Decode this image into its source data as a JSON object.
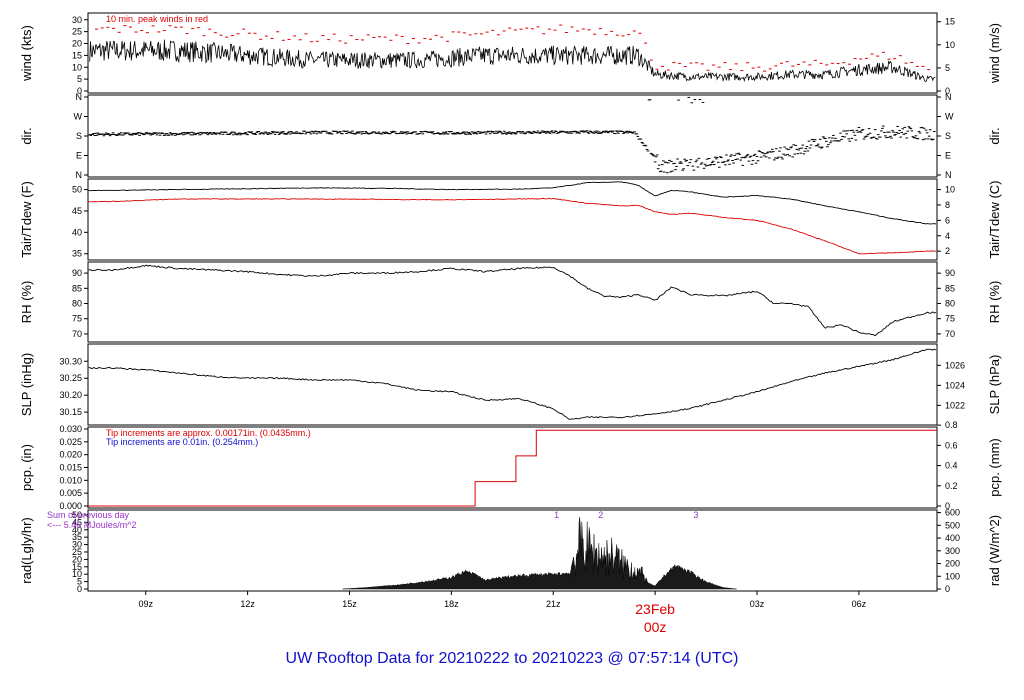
{
  "title": "UW Rooftop Data for 20210222  to  20210223 @ 07:57:14  (UTC)",
  "x_axis": {
    "ticks": [
      "09z",
      "12z",
      "15z",
      "18z",
      "21z",
      "03z",
      "06z"
    ],
    "midnight_label": "23Feb",
    "midnight_hour": "00z",
    "midnight_color": "#dd0000"
  },
  "chart_data": [
    {
      "type": "line",
      "panel": "wind",
      "ylabel_left": "wind (kts)",
      "ylabel_right": "wind (m/s)",
      "left_ticks": [
        "0",
        "5",
        "10",
        "15",
        "20",
        "25",
        "30"
      ],
      "right_ticks": [
        "0",
        "5",
        "10",
        "15"
      ],
      "ylim": [
        0,
        32
      ],
      "annotation": "10 min. peak winds in red",
      "series": [
        {
          "name": "wind",
          "color": "#000000",
          "x": [
            8,
            9,
            10,
            11,
            12,
            13,
            14,
            15,
            16,
            17,
            18,
            19,
            20,
            21,
            22,
            23,
            23.5,
            24,
            25,
            26,
            27,
            28,
            29,
            30,
            31,
            32
          ],
          "values": [
            17,
            17,
            17,
            16,
            15,
            14,
            13,
            13,
            13,
            13,
            14,
            15,
            15,
            15,
            15,
            15,
            15,
            7,
            6,
            6,
            6,
            7,
            7,
            9,
            10,
            5
          ]
        },
        {
          "name": "peak winds",
          "color": "#dd0000",
          "x": [
            8,
            9,
            10,
            11,
            12,
            13,
            14,
            15,
            16,
            17,
            18,
            19,
            20,
            21,
            22,
            23,
            23.5,
            24,
            25,
            26,
            27,
            28,
            29,
            30,
            31,
            32
          ],
          "values": [
            26,
            26,
            26,
            25,
            24,
            23,
            22,
            22,
            22,
            22,
            23,
            24,
            25,
            26,
            26,
            25,
            25,
            11,
            10,
            10,
            10,
            11,
            11,
            14,
            15,
            9
          ]
        }
      ]
    },
    {
      "type": "scatter",
      "panel": "dir",
      "ylabel_left": "dir.",
      "ylabel_right": "dir.",
      "left_ticks": [
        "N",
        "E",
        "S",
        "W",
        "N"
      ],
      "right_ticks": [
        "N",
        "E",
        "S",
        "W",
        "N"
      ],
      "ylim": [
        0,
        360
      ],
      "series": [
        {
          "name": "dir",
          "color": "#000000",
          "x": [
            8,
            10,
            12,
            14,
            16,
            18,
            20,
            22,
            23.4,
            24.2,
            24.6,
            25,
            26,
            27,
            28,
            29,
            30,
            31,
            32
          ],
          "values": [
            188,
            190,
            193,
            196,
            196,
            194,
            196,
            198,
            196,
            35,
            45,
            50,
            65,
            80,
            110,
            155,
            190,
            200,
            190
          ]
        }
      ]
    },
    {
      "type": "line",
      "panel": "temperature",
      "ylabel_left": "Tair/Tdew (F)",
      "ylabel_right": "Tair/Tdew (C)",
      "left_ticks": [
        "35",
        "40",
        "45",
        "50"
      ],
      "right_ticks": [
        "2",
        "4",
        "6",
        "8",
        "10"
      ],
      "ylim": [
        34,
        52
      ],
      "series": [
        {
          "name": "Tair",
          "color": "#000000",
          "x": [
            8,
            10,
            12,
            14,
            16,
            18,
            20,
            21,
            22,
            23,
            23.5,
            24,
            24.5,
            25,
            26,
            27,
            28,
            29,
            30,
            31,
            32
          ],
          "values": [
            49.8,
            50,
            50.2,
            50.4,
            50.3,
            50,
            50.1,
            50.4,
            51.6,
            51.8,
            51,
            48.5,
            49.8,
            49.5,
            48.2,
            48.6,
            47.8,
            46.2,
            44.8,
            43.2,
            42
          ]
        },
        {
          "name": "Tdew",
          "color": "#dd0000",
          "x": [
            8,
            10,
            12,
            14,
            16,
            18,
            20,
            21,
            22,
            23,
            23.5,
            24,
            24.5,
            25,
            26,
            27,
            28,
            29,
            30,
            31,
            32
          ],
          "values": [
            47.2,
            47.8,
            47.8,
            47.8,
            47.7,
            47.6,
            47.8,
            47.9,
            46.8,
            46.2,
            46.3,
            44.8,
            44.2,
            44.5,
            43.5,
            42.8,
            40.8,
            38,
            35,
            35.2,
            35.6
          ]
        }
      ]
    },
    {
      "type": "line",
      "panel": "rh",
      "ylabel_left": "RH (%)",
      "ylabel_right": "RH (%)",
      "left_ticks": [
        "70",
        "75",
        "80",
        "85",
        "90"
      ],
      "right_ticks": [
        "70",
        "75",
        "80",
        "85",
        "90"
      ],
      "ylim": [
        68,
        93
      ],
      "series": [
        {
          "name": "RH",
          "color": "#000000",
          "x": [
            8,
            9,
            10,
            11,
            12,
            13,
            14,
            15,
            16,
            17,
            18,
            19,
            20,
            21,
            21.5,
            22,
            22.5,
            23,
            23.5,
            24,
            24.5,
            25,
            26,
            27,
            27.5,
            28,
            28.5,
            29,
            29.5,
            30,
            30.5,
            31,
            32
          ],
          "values": [
            91,
            92.5,
            91.5,
            91,
            90.5,
            89.5,
            89,
            90,
            90,
            90.5,
            91.5,
            90.5,
            91.5,
            92,
            89,
            85,
            82.5,
            82,
            83,
            81,
            85.5,
            83,
            82.5,
            84,
            80,
            80,
            79,
            72,
            73,
            70.5,
            69.5,
            74,
            77
          ]
        }
      ]
    },
    {
      "type": "line",
      "panel": "slp",
      "ylabel_left": "SLP (inHg)",
      "ylabel_right": "SLP (hPa)",
      "left_ticks": [
        "30.15",
        "30.20",
        "30.25",
        "30.30"
      ],
      "right_ticks": [
        "1022",
        "1024",
        "1026"
      ],
      "ylim": [
        30.118,
        30.345
      ],
      "series": [
        {
          "name": "SLP",
          "color": "#000000",
          "x": [
            8,
            9,
            10,
            11,
            12,
            13,
            14,
            15,
            16,
            17,
            18,
            19,
            20,
            21,
            21.5,
            22,
            23,
            24,
            25,
            26,
            27,
            28,
            29,
            30,
            31,
            32
          ],
          "values": [
            30.28,
            30.275,
            30.265,
            30.255,
            30.25,
            30.25,
            30.245,
            30.245,
            30.235,
            30.215,
            30.21,
            30.185,
            30.19,
            30.16,
            30.128,
            30.135,
            30.135,
            30.145,
            30.16,
            30.185,
            30.21,
            30.24,
            30.265,
            30.285,
            30.305,
            30.335
          ]
        }
      ]
    },
    {
      "type": "line",
      "panel": "precip",
      "ylabel_left": "pcp. (in)",
      "ylabel_right": "pcp. (mm)",
      "left_ticks": [
        "0.000",
        "0.005",
        "0.010",
        "0.015",
        "0.020",
        "0.025",
        "0.030"
      ],
      "right_ticks": [
        "0",
        "0.2",
        "0.4",
        "0.6",
        "0.8"
      ],
      "ylim": [
        0,
        0.03
      ],
      "notes": [
        {
          "text": "Tip increments are approx. 0.00171in. (0.0435mm.)",
          "color": "#dd0000"
        },
        {
          "text": "Tip increments are 0.01in. (0.254mm.)",
          "color": "#1010cc"
        }
      ],
      "series": [
        {
          "name": "precip",
          "color": "#dd0000",
          "x": [
            7.3,
            18.7,
            18.7,
            19.9,
            19.9,
            20.5,
            20.5,
            32.3
          ],
          "values": [
            0,
            0,
            0.0095,
            0.0095,
            0.0195,
            0.0195,
            0.0295,
            0.0295
          ]
        }
      ]
    },
    {
      "type": "area",
      "panel": "radiation",
      "ylabel_left": "rad(Lgly/hr)",
      "ylabel_right": "rad (W/m^2)",
      "left_ticks": [
        "0",
        "5",
        "10",
        "15",
        "20",
        "25",
        "30",
        "35",
        "40",
        "45",
        "50"
      ],
      "right_ticks": [
        "0",
        "100",
        "200",
        "300",
        "400",
        "500",
        "600"
      ],
      "ylim": [
        0,
        52
      ],
      "sum_note": "Sum of previous day",
      "sum_value": "<--- 5.46 MJoules/m^2",
      "markers": [
        "1",
        "2",
        "3"
      ],
      "series": [
        {
          "name": "rad",
          "color": "#000000",
          "x": [
            14.8,
            15.5,
            16.5,
            17.5,
            18.0,
            18.4,
            18.7,
            19.0,
            19.5,
            20.0,
            20.5,
            21.0,
            21.5,
            21.8,
            22.0,
            22.2,
            22.5,
            22.8,
            23.0,
            23.3,
            23.6,
            23.8,
            24.0,
            24.3,
            24.6,
            25.0,
            25.5,
            26.0,
            26.4
          ],
          "values": [
            0,
            1,
            3,
            6,
            8,
            12,
            10,
            6,
            8,
            9,
            10,
            10,
            11,
            45,
            40,
            35,
            30,
            32,
            24,
            20,
            14,
            4,
            2,
            10,
            16,
            12,
            5,
            1,
            0
          ]
        }
      ]
    }
  ]
}
